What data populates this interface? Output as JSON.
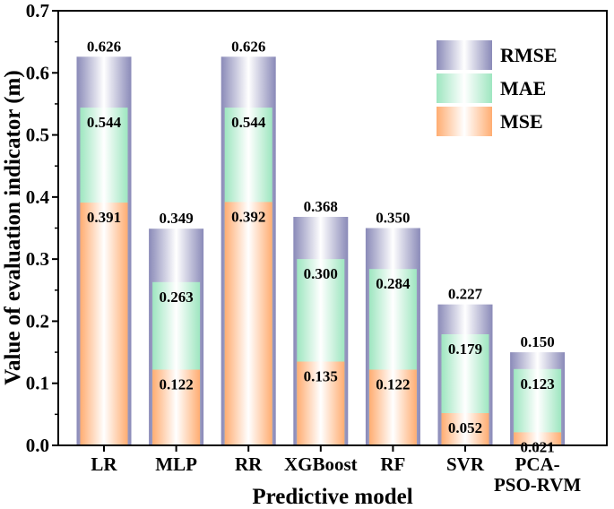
{
  "chart_data": {
    "type": "bar",
    "subtype": "overlapped",
    "xlabel": "Predictive model",
    "ylabel": "Value of evaluation indicator (m)",
    "ylim": [
      0,
      0.7
    ],
    "yticks": [
      "0.0",
      "0.1",
      "0.2",
      "0.3",
      "0.4",
      "0.5",
      "0.6",
      "0.7"
    ],
    "categories": [
      [
        "LR"
      ],
      [
        "MLP"
      ],
      [
        "RR"
      ],
      [
        "XGBoost"
      ],
      [
        "RF"
      ],
      [
        "SVR"
      ],
      [
        "PCA-",
        "PSO-RVM"
      ]
    ],
    "series": [
      {
        "name": "RMSE",
        "values": [
          0.626,
          0.349,
          0.626,
          0.368,
          0.35,
          0.227,
          0.15
        ],
        "labels": [
          "0.626",
          "0.349",
          "0.626",
          "0.368",
          "0.350",
          "0.227",
          "0.150"
        ],
        "edge_color": "#8a8ab8",
        "mid_color": "#ffffff"
      },
      {
        "name": "MAE",
        "values": [
          0.544,
          0.263,
          0.544,
          0.3,
          0.284,
          0.179,
          0.123
        ],
        "labels": [
          "0.544",
          "0.263",
          "0.544",
          "0.300",
          "0.284",
          "0.179",
          "0.123"
        ],
        "edge_color": "#9ee6c0",
        "mid_color": "#ffffff"
      },
      {
        "name": "MSE",
        "values": [
          0.391,
          0.122,
          0.392,
          0.135,
          0.122,
          0.052,
          0.021
        ],
        "labels": [
          "0.391",
          "0.122",
          "0.392",
          "0.135",
          "0.122",
          "0.052",
          "0.021"
        ],
        "edge_color": "#ffad72",
        "mid_color": "#ffffff"
      }
    ],
    "legend_position": "top-right"
  }
}
